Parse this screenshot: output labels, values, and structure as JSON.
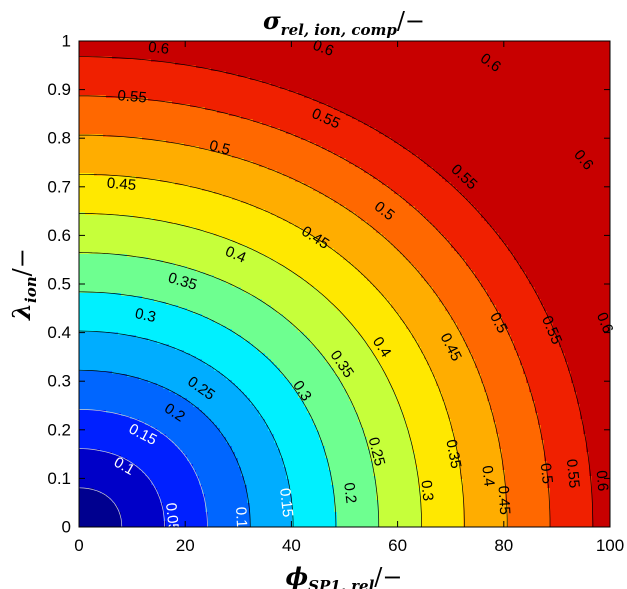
{
  "chart_data": {
    "type": "contour",
    "title": "σ_rel,ion,comp/−",
    "title_parts": {
      "symbol": "σ",
      "sub": "rel, ion, comp",
      "unit": "/−"
    },
    "xlabel": "ϕ_SP1,rel/−",
    "xlabel_parts": {
      "symbol": "ϕ",
      "sub": "SP1, rel",
      "unit": "/−"
    },
    "ylabel": "λ_ion/−",
    "ylabel_parts": {
      "symbol": "λ",
      "sub": "ion",
      "unit": "/−"
    },
    "xlim": [
      0,
      100
    ],
    "ylim": [
      0,
      1
    ],
    "x_ticks": [
      "0",
      "20",
      "40",
      "60",
      "80",
      "100"
    ],
    "y_ticks": [
      "0",
      "0.1",
      "0.2",
      "0.3",
      "0.4",
      "0.5",
      "0.6",
      "0.7",
      "0.8",
      "0.9",
      "1"
    ],
    "colormap": "jet",
    "levels": [
      0.05,
      0.1,
      0.15,
      0.2,
      0.25,
      0.3,
      0.35,
      0.4,
      0.45,
      0.5,
      0.55,
      0.6
    ],
    "fill_colors": [
      "#00008f",
      "#0000c8",
      "#0020ff",
      "#0066ff",
      "#00adff",
      "#00f0ff",
      "#6eff90",
      "#c6ff3a",
      "#ffe800",
      "#ffad00",
      "#ff6800",
      "#f02000",
      "#c80000",
      "#7a0000"
    ],
    "contour_labels": [
      {
        "text": "0.05",
        "x": 17.5,
        "y": 0.02,
        "color": "#ffffff"
      },
      {
        "text": "0.1",
        "x": 8.5,
        "y": 0.125,
        "color": "#ffffff"
      },
      {
        "text": "0.1",
        "x": 30.5,
        "y": 0.02,
        "color": "#ffffff"
      },
      {
        "text": "0.15",
        "x": 12,
        "y": 0.19,
        "color": "#ffffff"
      },
      {
        "text": "0.15",
        "x": 39,
        "y": 0.05,
        "color": "#ffffff"
      },
      {
        "text": "0.2",
        "x": 18,
        "y": 0.235,
        "color": "#000000"
      },
      {
        "text": "0.2",
        "x": 51,
        "y": 0.07,
        "color": "#000000"
      },
      {
        "text": "0.25",
        "x": 23,
        "y": 0.285,
        "color": "#000000"
      },
      {
        "text": "0.25",
        "x": 56,
        "y": 0.155,
        "color": "#000000"
      },
      {
        "text": "0.3",
        "x": 12.5,
        "y": 0.435,
        "color": "#000000"
      },
      {
        "text": "0.3",
        "x": 42,
        "y": 0.28,
        "color": "#000000"
      },
      {
        "text": "0.3",
        "x": 65.5,
        "y": 0.075,
        "color": "#000000"
      },
      {
        "text": "0.35",
        "x": 19.5,
        "y": 0.505,
        "color": "#000000"
      },
      {
        "text": "0.35",
        "x": 49.5,
        "y": 0.335,
        "color": "#000000"
      },
      {
        "text": "0.35",
        "x": 70.5,
        "y": 0.15,
        "color": "#000000"
      },
      {
        "text": "0.4",
        "x": 29.5,
        "y": 0.56,
        "color": "#000000"
      },
      {
        "text": "0.4",
        "x": 57,
        "y": 0.37,
        "color": "#000000"
      },
      {
        "text": "0.4",
        "x": 77,
        "y": 0.105,
        "color": "#000000"
      },
      {
        "text": "0.45",
        "x": 8,
        "y": 0.705,
        "color": "#000000"
      },
      {
        "text": "0.45",
        "x": 44.5,
        "y": 0.595,
        "color": "#000000"
      },
      {
        "text": "0.45",
        "x": 70,
        "y": 0.37,
        "color": "#000000"
      },
      {
        "text": "0.45",
        "x": 80,
        "y": 0.055,
        "color": "#000000"
      },
      {
        "text": "0.5",
        "x": 26.5,
        "y": 0.78,
        "color": "#000000"
      },
      {
        "text": "0.5",
        "x": 57.5,
        "y": 0.65,
        "color": "#000000"
      },
      {
        "text": "0.5",
        "x": 79,
        "y": 0.42,
        "color": "#000000"
      },
      {
        "text": "0.5",
        "x": 88,
        "y": 0.11,
        "color": "#000000"
      },
      {
        "text": "0.55",
        "x": 10,
        "y": 0.885,
        "color": "#000000"
      },
      {
        "text": "0.55",
        "x": 46.5,
        "y": 0.84,
        "color": "#000000"
      },
      {
        "text": "0.55",
        "x": 72.5,
        "y": 0.72,
        "color": "#000000"
      },
      {
        "text": "0.55",
        "x": 89,
        "y": 0.405,
        "color": "#000000"
      },
      {
        "text": "0.55",
        "x": 93,
        "y": 0.11,
        "color": "#000000"
      },
      {
        "text": "0.6",
        "x": 15,
        "y": 0.985,
        "color": "#000000"
      },
      {
        "text": "0.6",
        "x": 46,
        "y": 0.985,
        "color": "#000000"
      },
      {
        "text": "0.6",
        "x": 77.5,
        "y": 0.955,
        "color": "#000000"
      },
      {
        "text": "0.6",
        "x": 95,
        "y": 0.755,
        "color": "#000000"
      },
      {
        "text": "0.6",
        "x": 99,
        "y": 0.42,
        "color": "#000000"
      },
      {
        "text": "0.6",
        "x": 98.5,
        "y": 0.095,
        "color": "#000000"
      }
    ]
  }
}
